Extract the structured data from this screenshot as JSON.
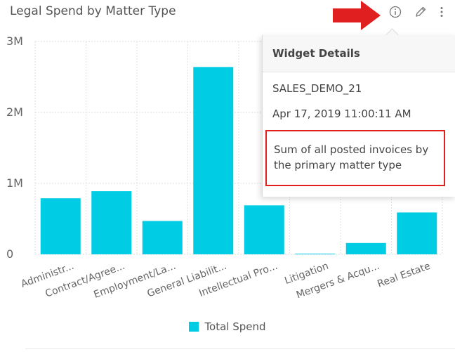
{
  "widget": {
    "title": "Legal Spend by Matter Type"
  },
  "icons": {
    "info": "info-icon",
    "edit": "pencil-icon",
    "more": "kebab-menu-icon"
  },
  "colors": {
    "bar": "#00cce3",
    "annotation_red": "#e02020"
  },
  "chart_data": {
    "type": "bar",
    "categories": [
      "Administr...",
      "Contract/Agree...",
      "Employment/La...",
      "General Liabilit...",
      "Intellectual Pro...",
      "Litigation",
      "Mergers & Acqu...",
      "Real Estate"
    ],
    "series": [
      {
        "name": "Total Spend",
        "values": [
          790000,
          890000,
          470000,
          2640000,
          690000,
          10000,
          160000,
          590000
        ]
      }
    ],
    "ylim": [
      0,
      3000000
    ],
    "yticks": [
      {
        "value": 0,
        "label": "0"
      },
      {
        "value": 1000000,
        "label": "1M"
      },
      {
        "value": 2000000,
        "label": "2M"
      },
      {
        "value": 3000000,
        "label": "3M"
      }
    ],
    "grid": true,
    "legend": "bottom"
  },
  "popover": {
    "title": "Widget Details",
    "id": "SALES_DEMO_21",
    "date": "Apr 17, 2019 11:00:11 AM",
    "description": "Sum of all posted invoices by the primary matter type"
  }
}
